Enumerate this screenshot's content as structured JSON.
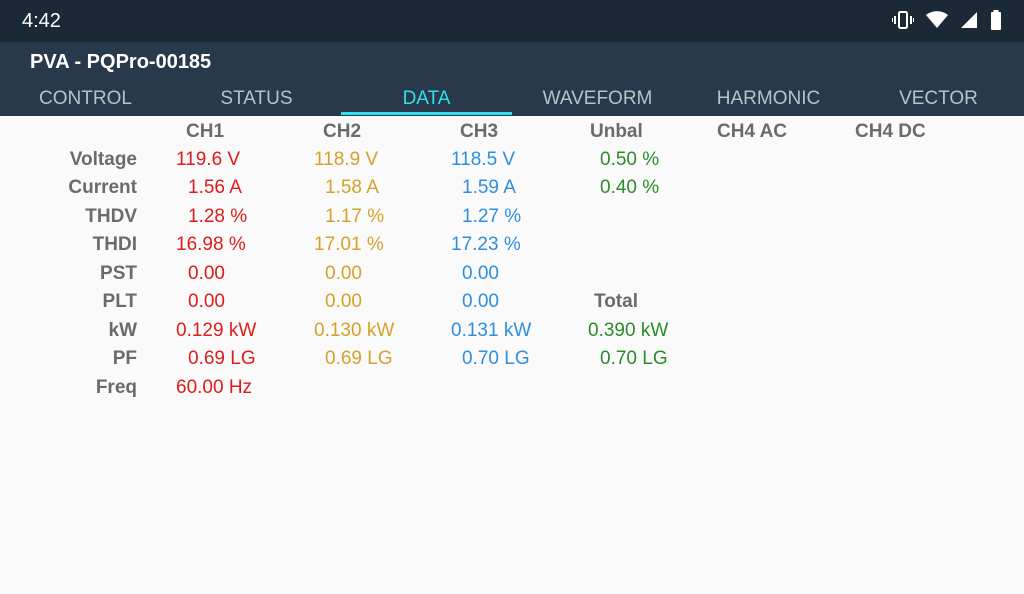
{
  "status_bar": {
    "time": "4:42"
  },
  "app": {
    "title": "PVA - PQPro-00185"
  },
  "tabs": [
    "CONTROL",
    "STATUS",
    "DATA",
    "WAVEFORM",
    "HARMONIC",
    "VECTOR"
  ],
  "active_tab": "DATA",
  "headers": {
    "ch1": "CH1",
    "ch2": "CH2",
    "ch3": "CH3",
    "unbal": "Unbal",
    "ch4ac": "CH4 AC",
    "ch4dc": "CH4 DC",
    "total": "Total"
  },
  "rows": [
    {
      "label": "Voltage",
      "ch1": "119.6 V",
      "ch2": "118.9 V",
      "ch3": "118.5 V",
      "extra": "0.50 %"
    },
    {
      "label": "Current",
      "ch1": "1.56 A",
      "ch2": "1.58 A",
      "ch3": "1.59 A",
      "extra": "0.40 %"
    },
    {
      "label": "THDV",
      "ch1": "1.28 %",
      "ch2": "1.17 %",
      "ch3": "1.27 %",
      "extra": ""
    },
    {
      "label": "THDI",
      "ch1": "16.98 %",
      "ch2": "17.01 %",
      "ch3": "17.23 %",
      "extra": ""
    },
    {
      "label": "PST",
      "ch1": "0.00",
      "ch2": "0.00",
      "ch3": "0.00",
      "extra": ""
    },
    {
      "label": "PLT",
      "ch1": "0.00",
      "ch2": "0.00",
      "ch3": "0.00",
      "extra": ""
    },
    {
      "label": "kW",
      "ch1": "0.129 kW",
      "ch2": "0.130 kW",
      "ch3": "0.131 kW",
      "extra": "0.390 kW"
    },
    {
      "label": "PF",
      "ch1": "0.69 LG",
      "ch2": "0.69 LG",
      "ch3": "0.70 LG",
      "extra": "0.70 LG"
    },
    {
      "label": "Freq",
      "ch1": "60.00 Hz",
      "ch2": "",
      "ch3": "",
      "extra": ""
    }
  ],
  "colors": {
    "ch1": "#e01b1b",
    "ch2": "#d4a22a",
    "ch3": "#2e8fe0",
    "extra": "#2a8c2a",
    "accent": "#2ee0f0"
  },
  "icons": [
    "vibrate-icon",
    "wifi-icon",
    "cellular-signal-icon",
    "battery-icon"
  ]
}
